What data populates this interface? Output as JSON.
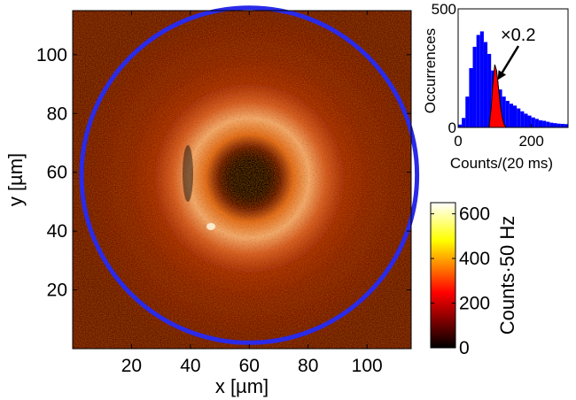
{
  "chart_data": [
    {
      "type": "heatmap",
      "title": "",
      "xlabel": "x [µm]",
      "ylabel": "y [µm]",
      "xlim": [
        0,
        115
      ],
      "ylim": [
        0,
        115
      ],
      "xticks": [
        20,
        40,
        60,
        80,
        100
      ],
      "yticks": [
        20,
        40,
        60,
        80,
        100
      ],
      "colorbar": {
        "label": "Counts·50 Hz",
        "range": [
          0,
          650
        ],
        "ticks": [
          0,
          200,
          400,
          600
        ],
        "colormap": "hot"
      },
      "dark_core": {
        "center_x": 60,
        "center_y": 58,
        "radius": 10
      },
      "bright_ring": {
        "center_x": 55,
        "center_y": 60,
        "inner_radius": 18,
        "outer_radius": 36
      },
      "circle_overlay": {
        "center_x": 60,
        "center_y": 59,
        "radius": 57,
        "color": "#2a2ae8"
      }
    },
    {
      "type": "bar",
      "title": "",
      "xlabel": "Counts/(20 ms)",
      "ylabel": "Occurrences",
      "xlim": [
        0,
        300
      ],
      "ylim": [
        0,
        500
      ],
      "xticks": [
        0,
        200
      ],
      "yticks": [
        0,
        500
      ],
      "bin_width": 10,
      "series": [
        {
          "color": "#0000ff",
          "x": [
            5,
            15,
            25,
            35,
            45,
            55,
            65,
            75,
            85,
            95,
            105,
            115,
            125,
            135,
            145,
            155,
            165,
            175,
            185,
            195,
            205,
            215,
            225,
            235,
            245,
            255,
            265,
            275,
            285,
            295
          ],
          "values": [
            12,
            40,
            130,
            250,
            340,
            390,
            405,
            360,
            310,
            240,
            195,
            160,
            130,
            112,
            100,
            92,
            80,
            68,
            58,
            50,
            42,
            36,
            30,
            28,
            24,
            20,
            18,
            16,
            15,
            14
          ]
        },
        {
          "color": "#ff0000",
          "x": [
            85,
            90,
            95,
            100,
            105,
            110,
            115,
            120,
            125,
            130
          ],
          "values": [
            10,
            80,
            190,
            265,
            240,
            170,
            95,
            45,
            15,
            3
          ]
        }
      ],
      "annotation": {
        "text": "×0.2",
        "points_to_x": 108,
        "points_to_y": 200
      }
    }
  ]
}
